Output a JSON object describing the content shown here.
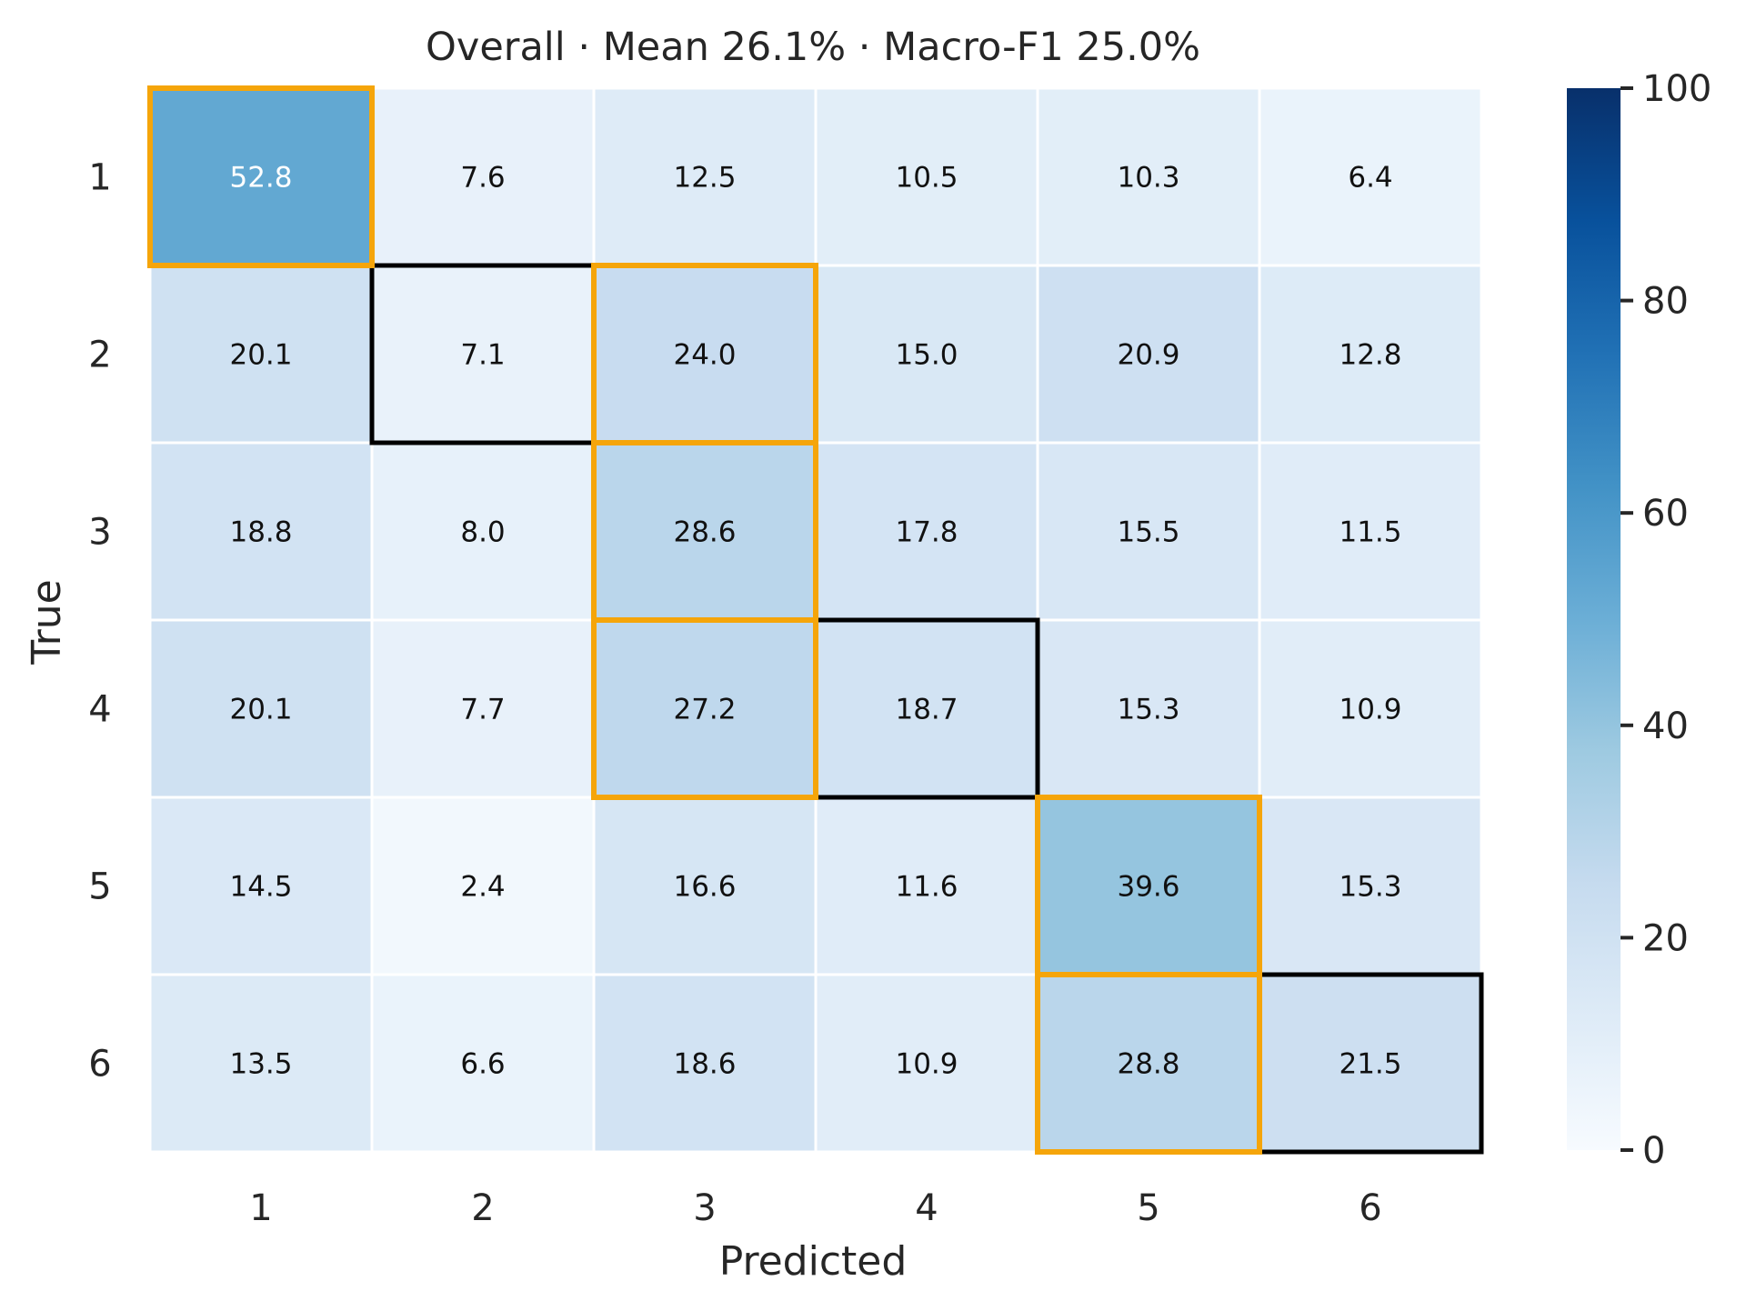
{
  "chart_data": {
    "type": "heatmap",
    "title": "Overall · Mean 26.1% · Macro-F1 25.0%",
    "xlabel": "Predicted",
    "ylabel": "True",
    "x_categories": [
      "1",
      "2",
      "3",
      "4",
      "5",
      "6"
    ],
    "y_categories": [
      "1",
      "2",
      "3",
      "4",
      "5",
      "6"
    ],
    "values": [
      [
        52.8,
        7.6,
        12.5,
        10.5,
        10.3,
        6.4
      ],
      [
        20.1,
        7.1,
        24.0,
        15.0,
        20.9,
        12.8
      ],
      [
        18.8,
        8.0,
        28.6,
        17.8,
        15.5,
        11.5
      ],
      [
        20.1,
        7.7,
        27.2,
        18.7,
        15.3,
        10.9
      ],
      [
        14.5,
        2.4,
        16.6,
        11.6,
        39.6,
        15.3
      ],
      [
        13.5,
        6.6,
        18.6,
        10.9,
        28.8,
        21.5
      ]
    ],
    "value_labels": [
      [
        "52.8",
        "7.6",
        "12.5",
        "10.5",
        "10.3",
        "6.4"
      ],
      [
        "20.1",
        "7.1",
        "24.0",
        "15.0",
        "20.9",
        "12.8"
      ],
      [
        "18.8",
        "8.0",
        "28.6",
        "17.8",
        "15.5",
        "11.5"
      ],
      [
        "20.1",
        "7.7",
        "27.2",
        "18.7",
        "15.3",
        "10.9"
      ],
      [
        "14.5",
        "2.4",
        "16.6",
        "11.6",
        "39.6",
        "15.3"
      ],
      [
        "13.5",
        "6.6",
        "18.6",
        "10.9",
        "28.8",
        "21.5"
      ]
    ],
    "colorbar": {
      "range": [
        0,
        100
      ],
      "ticks": [
        "0",
        "20",
        "40",
        "60",
        "80",
        "100"
      ],
      "colormap": "Blues"
    },
    "highlights": {
      "orange_cells": [
        [
          0,
          0
        ],
        [
          1,
          2
        ],
        [
          2,
          2
        ],
        [
          3,
          2
        ],
        [
          4,
          4
        ],
        [
          5,
          4
        ]
      ],
      "black_cells": [
        [
          1,
          1
        ],
        [
          3,
          3
        ],
        [
          5,
          5
        ]
      ],
      "orange_color": "#f5a50a",
      "black_color": "#000000"
    }
  }
}
